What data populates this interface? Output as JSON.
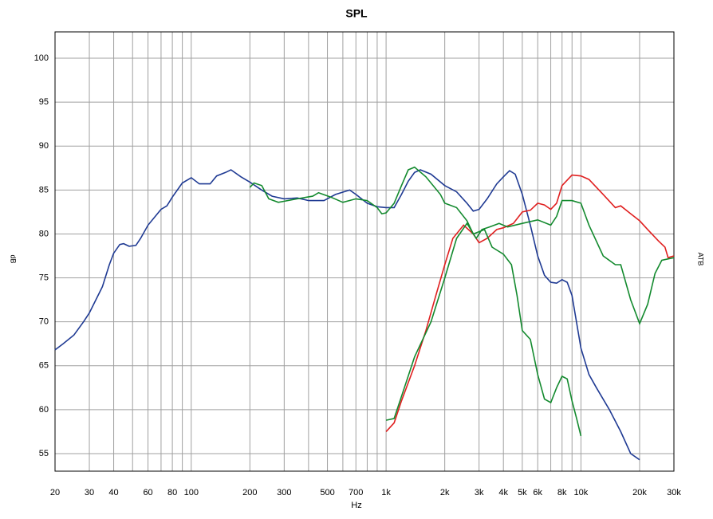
{
  "chart_data": {
    "type": "line",
    "title": "SPL",
    "x_label": "Hz",
    "y_label": "dB",
    "y2_label": "ATB",
    "xscale": "log",
    "grid": true,
    "xlim": [
      20,
      30000
    ],
    "ylim": [
      53,
      103
    ],
    "yticks": [
      55,
      60,
      65,
      70,
      75,
      80,
      85,
      90,
      95,
      100
    ],
    "xticks": [
      20,
      30,
      40,
      60,
      80,
      100,
      200,
      300,
      500,
      700,
      {
        "value": 1000,
        "label": "1k"
      },
      {
        "value": 2000,
        "label": "2k"
      },
      {
        "value": 3000,
        "label": "3k"
      },
      {
        "value": 4000,
        "label": "4k"
      },
      {
        "value": 5000,
        "label": "5k"
      },
      {
        "value": 6000,
        "label": "6k"
      },
      {
        "value": 8000,
        "label": "8k"
      },
      {
        "value": 10000,
        "label": "10k"
      },
      {
        "value": 20000,
        "label": "20k"
      },
      {
        "value": 30000,
        "label": "30k"
      }
    ],
    "xminor": [
      50,
      70,
      90,
      400,
      600,
      800,
      900,
      7000,
      9000
    ],
    "series": [
      {
        "color": "#1f3a93",
        "x": [
          20,
          22,
          25,
          28,
          30,
          35,
          38,
          40,
          43,
          45,
          48,
          52,
          55,
          60,
          70,
          75,
          80,
          90,
          100,
          110,
          125,
          135,
          150,
          160,
          180,
          200,
          230,
          260,
          300,
          350,
          400,
          480,
          550,
          650,
          700,
          800,
          900,
          1000,
          1100,
          1200,
          1300,
          1400,
          1500,
          1700,
          2000,
          2300,
          2600,
          2800,
          3000,
          3300,
          3700,
          4000,
          4300,
          4600,
          5000,
          5500,
          6000,
          6500,
          7000,
          7500,
          8000,
          8500,
          9000,
          10000,
          11000,
          12000,
          14000,
          16000,
          18000,
          20000
        ],
        "values": [
          66.8,
          67.5,
          68.5,
          70,
          71,
          74,
          76.5,
          77.8,
          78.8,
          78.9,
          78.6,
          78.7,
          79.5,
          81,
          82.8,
          83.2,
          84.2,
          85.8,
          86.4,
          85.7,
          85.7,
          86.6,
          87.0,
          87.3,
          86.5,
          85.9,
          85,
          84.3,
          84,
          84.1,
          83.8,
          83.8,
          84.5,
          85,
          84.5,
          83.5,
          83.1,
          83,
          83,
          84.5,
          86,
          87,
          87.3,
          86.8,
          85.5,
          84.8,
          83.5,
          82.6,
          82.8,
          84,
          85.7,
          86.5,
          87.2,
          86.8,
          84.5,
          81,
          77.5,
          75.3,
          74.5,
          74.4,
          74.8,
          74.5,
          73,
          67,
          64,
          62.5,
          60,
          57.5,
          55,
          54.3
        ]
      },
      {
        "color": "#e02020",
        "x": [
          1000,
          1100,
          1200,
          1400,
          1600,
          1800,
          2000,
          2200,
          2500,
          2800,
          3000,
          3300,
          3700,
          4000,
          4500,
          5000,
          5500,
          6000,
          6500,
          7000,
          7500,
          8000,
          9000,
          10000,
          11000,
          13000,
          15000,
          16000,
          18000,
          20000,
          22000,
          25000,
          27000,
          28000,
          30000
        ],
        "values": [
          57.5,
          58.5,
          61,
          65,
          69,
          73,
          76.5,
          79.5,
          81,
          80,
          79,
          79.5,
          80.5,
          80.7,
          81.2,
          82.5,
          82.7,
          83.5,
          83.3,
          82.8,
          83.5,
          85.5,
          86.7,
          86.6,
          86.2,
          84.5,
          83,
          83.2,
          82.3,
          81.5,
          80.5,
          79.2,
          78.5,
          77.3,
          77.5
        ]
      },
      {
        "color": "#138a2e",
        "x": [
          200,
          210,
          230,
          250,
          280,
          350,
          420,
          450,
          520,
          600,
          700,
          800,
          900,
          950,
          1000,
          1100,
          1200,
          1300,
          1400,
          1600,
          1900,
          2000,
          2300,
          2600,
          2800,
          3200,
          3500,
          4000,
          4400,
          4700,
          5000,
          5500,
          6000,
          6500,
          7000,
          7500,
          8000,
          8500,
          9000,
          9500,
          10000
        ],
        "values": [
          85.3,
          85.8,
          85.5,
          84,
          83.6,
          84,
          84.3,
          84.7,
          84.2,
          83.6,
          84,
          83.8,
          83,
          82.3,
          82.4,
          83.5,
          85.5,
          87.3,
          87.6,
          86.5,
          84.5,
          83.5,
          83,
          81.5,
          80,
          80.5,
          78.5,
          77.7,
          76.5,
          73,
          69,
          68,
          64,
          61.2,
          60.8,
          62.5,
          63.8,
          63.5,
          61,
          59,
          57
        ]
      },
      {
        "color": "#138a2e",
        "x": [
          1000,
          1100,
          1200,
          1400,
          1700,
          2000,
          2300,
          2600,
          2900,
          3100,
          3400,
          3800,
          4200,
          5000,
          6000,
          7000,
          7500,
          8000,
          9000,
          10000,
          11000,
          13000,
          15000,
          16000,
          18000,
          20000,
          22000,
          24000,
          26000,
          30000
        ],
        "values": [
          58.8,
          59,
          61.5,
          66,
          70,
          75,
          79.5,
          81.2,
          79.5,
          80.5,
          80.8,
          81.2,
          80.8,
          81.2,
          81.6,
          81,
          82,
          83.8,
          83.8,
          83.5,
          81,
          77.5,
          76.5,
          76.5,
          72.5,
          69.8,
          72,
          75.5,
          77,
          77.3
        ]
      }
    ]
  }
}
